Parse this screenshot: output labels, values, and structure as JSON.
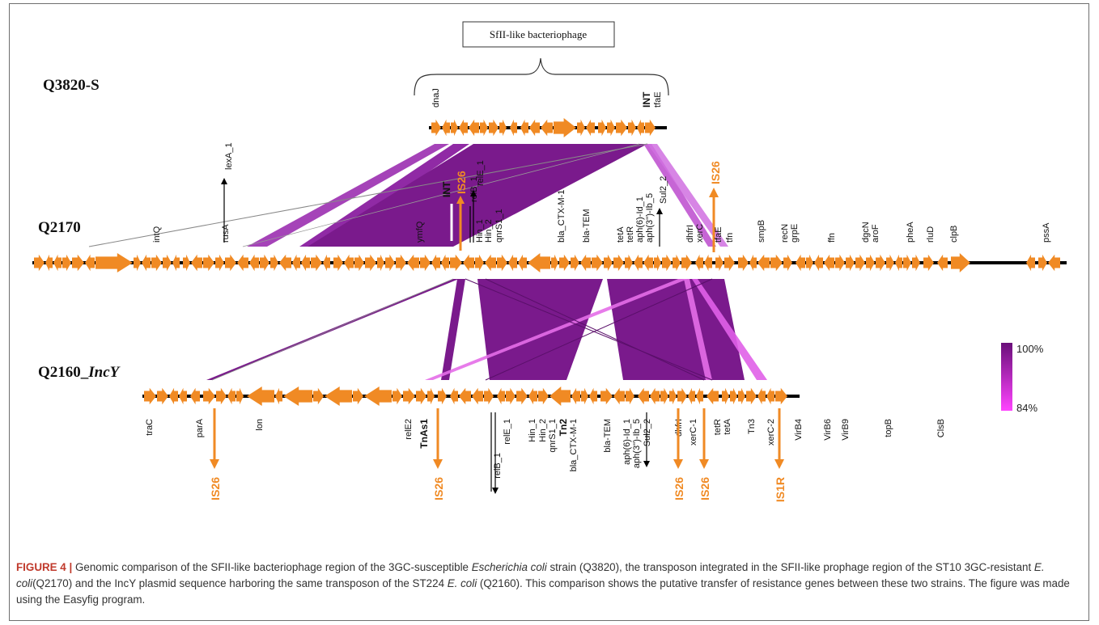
{
  "phage_box_label": "SfII-like bacteriophage",
  "tracks": [
    {
      "id": "Q3820-S",
      "label": "Q3820-S"
    },
    {
      "id": "Q2170",
      "label": "Q2170"
    },
    {
      "id": "Q2160_IncY",
      "label": "Q2160_",
      "label_italic": "IncY"
    }
  ],
  "q3820_genes": [
    "dnaJ",
    "INT",
    "tfaE"
  ],
  "q2170_genes_above": [
    "intQ",
    "rusA",
    "ymfQ",
    "Hin_1",
    "Hin_2",
    "qnrS1_1",
    "bla_CTX-M-1",
    "bla-TEM",
    "tetA",
    "tetR",
    "aph(6)-Id_1",
    "aph(3'')-Ib_5",
    "dhfrI",
    "xerC",
    "tfaE",
    "tfn",
    "smpB",
    "recN",
    "grpE",
    "ffn",
    "dgcN",
    "aroF",
    "pheA",
    "rluD",
    "clpB",
    "pssA"
  ],
  "q2170_markers": [
    "lexA_1",
    "INT",
    "IS26",
    "relB_1",
    "relE_1",
    "Sul2_2",
    "IS26"
  ],
  "q2160_genes_below": [
    "traC",
    "parA",
    "lon",
    "relE2",
    "TnAs1",
    "relB_1",
    "relE_1",
    "Hin_1",
    "Hin_2",
    "qnrS1_1",
    "Tn2",
    "bla_CTX-M-1",
    "bla-TEM",
    "aph(6)-Id_1",
    "aph(3'')-Ib_5",
    "Sul2_2",
    "dhfrI",
    "xerC-1",
    "tetR",
    "tetA",
    "Tn3",
    "xerC-2",
    "VirB4",
    "VirB6",
    "VirB9",
    "topB",
    "ClsB"
  ],
  "q2160_is": [
    "IS26",
    "IS26",
    "IS26",
    "IS26",
    "IS1R"
  ],
  "legend": {
    "max": "100%",
    "min": "84%",
    "max_color": "#6a0f7a",
    "min_color": "#ff44ff"
  },
  "colors": {
    "gene_arrow": "#f08a24",
    "backbone": "#000000",
    "link_high": "#7a1a8c",
    "link_low": "#ee66ee"
  },
  "caption": {
    "label": "FIGURE 4 |",
    "text_1": " Genomic comparison of the SFII-like bacteriophage region of the 3GC-susceptible ",
    "italic_1": "Escherichia coli",
    "text_2": " strain (Q3820), the transposon integrated in the SFII-like prophage region of the ST10 3GC-resistant ",
    "italic_2": "E. coli",
    "text_3": "(Q2170) and the IncY plasmid sequence harboring the same transposon of the ST224 ",
    "italic_3": "E. coli",
    "text_4": " (Q2160). This comparison shows the putative transfer of resistance genes between these two strains. The figure was made using the Easyfig program."
  }
}
